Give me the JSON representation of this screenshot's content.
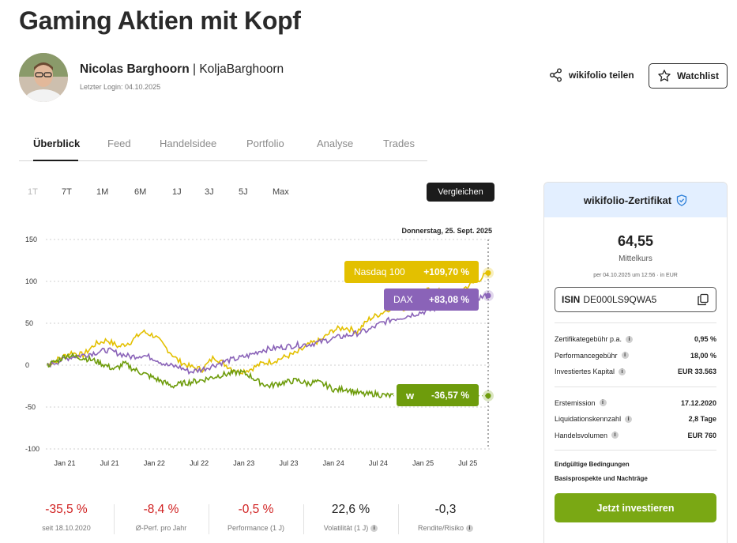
{
  "page": {
    "title": "Gaming Aktien mit Kopf"
  },
  "author": {
    "name": "Nicolas Barghoorn",
    "separator": "|",
    "handle": "KoljaBarghoorn",
    "last_login": "Letzter Login: 04.10.2025"
  },
  "actions": {
    "share_label": "wikifolio teilen",
    "watchlist_label": "Watchlist"
  },
  "tabs": [
    {
      "label": "Überblick",
      "active": true
    },
    {
      "label": "Feed"
    },
    {
      "label": "Handelsidee"
    },
    {
      "label": "Portfolio"
    },
    {
      "label": "Analyse"
    },
    {
      "label": "Trades"
    }
  ],
  "ranges": [
    "1T",
    "7T",
    "1M",
    "6M",
    "1J",
    "3J",
    "5J",
    "Max"
  ],
  "compare_label": "Vergleichen",
  "chart_data": {
    "type": "line",
    "date_label": "Donnerstag, 25. Sept. 2025",
    "y_ticks": [
      150,
      100,
      50,
      0,
      -50,
      -100
    ],
    "ylim": [
      -100,
      150
    ],
    "x_ticks": [
      "Jan 21",
      "Jul 21",
      "Jan 22",
      "Jul 22",
      "Jan 23",
      "Jul 23",
      "Jan 24",
      "Jul 24",
      "Jan 25",
      "Jul 25"
    ],
    "grid": true,
    "x_start": "Oct 2020",
    "x_end": "Sep 2025",
    "series": [
      {
        "name": "Nasdaq 100",
        "label_value": "+109,70 %",
        "color": "#e3c000",
        "values": [
          0,
          8,
          15,
          12,
          25,
          30,
          22,
          28,
          40,
          35,
          20,
          5,
          -2,
          -5,
          10,
          0,
          -8,
          -5,
          2,
          5,
          10,
          15,
          25,
          30,
          42,
          45,
          40,
          55,
          62,
          70,
          68,
          80,
          90,
          88,
          75,
          92,
          100,
          110
        ]
      },
      {
        "name": "DAX",
        "label_value": "+83,08 %",
        "color": "#8a63b8",
        "values": [
          0,
          5,
          10,
          12,
          15,
          18,
          14,
          10,
          12,
          8,
          0,
          -2,
          -8,
          -5,
          0,
          5,
          8,
          12,
          18,
          20,
          22,
          24,
          25,
          28,
          32,
          35,
          38,
          42,
          50,
          55,
          58,
          62,
          65,
          70,
          72,
          75,
          80,
          83
        ]
      },
      {
        "name": "wikifolio",
        "label_value": "-36,57 %",
        "color": "#6e9c0c",
        "values": [
          0,
          5,
          12,
          10,
          8,
          5,
          0,
          -5,
          2,
          -5,
          -10,
          -15,
          -20,
          -25,
          -22,
          -20,
          -18,
          -15,
          -12,
          -10,
          -8,
          -12,
          -20,
          -25,
          -22,
          -20,
          -18,
          -22,
          -20,
          -24,
          -30,
          -28,
          -32,
          -35,
          -34,
          -36,
          -36.57
        ]
      }
    ]
  },
  "stats": [
    {
      "value": "-35,5 %",
      "label": "seit 18.10.2020",
      "negative": true,
      "info": false
    },
    {
      "value": "-8,4 %",
      "label": "Ø-Perf. pro Jahr",
      "negative": true,
      "info": false
    },
    {
      "value": "-0,5 %",
      "label": "Performance (1 J)",
      "negative": true,
      "info": false
    },
    {
      "value": "22,6 %",
      "label": "Volatilität (1 J)",
      "negative": false,
      "info": true
    },
    {
      "value": "-0,3",
      "label": "Rendite/Risiko",
      "negative": false,
      "info": true
    }
  ],
  "certificate": {
    "title": "wikifolio-Zertifikat",
    "price": "64,55",
    "price_label": "Mittelkurs",
    "timestamp": "per 04.10.2025 um 12:56 · in EUR",
    "isin_label": "ISIN",
    "isin": "DE000LS9QWA5",
    "fees": [
      {
        "k": "Zertifikategebühr p.a.",
        "v": "0,95 %"
      },
      {
        "k": "Performancegebühr",
        "v": "18,00 %"
      },
      {
        "k": "Investiertes Kapital",
        "v": "EUR 33.563"
      }
    ],
    "details": [
      {
        "k": "Erstemission",
        "v": "17.12.2020"
      },
      {
        "k": "Liquidationskennzahl",
        "v": "2,8 Tage"
      },
      {
        "k": "Handelsvolumen",
        "v": "EUR 760"
      }
    ],
    "links": [
      "Endgültige Bedingungen",
      "Basisprospekte und Nachträge"
    ],
    "invest_label": "Jetzt investieren"
  }
}
